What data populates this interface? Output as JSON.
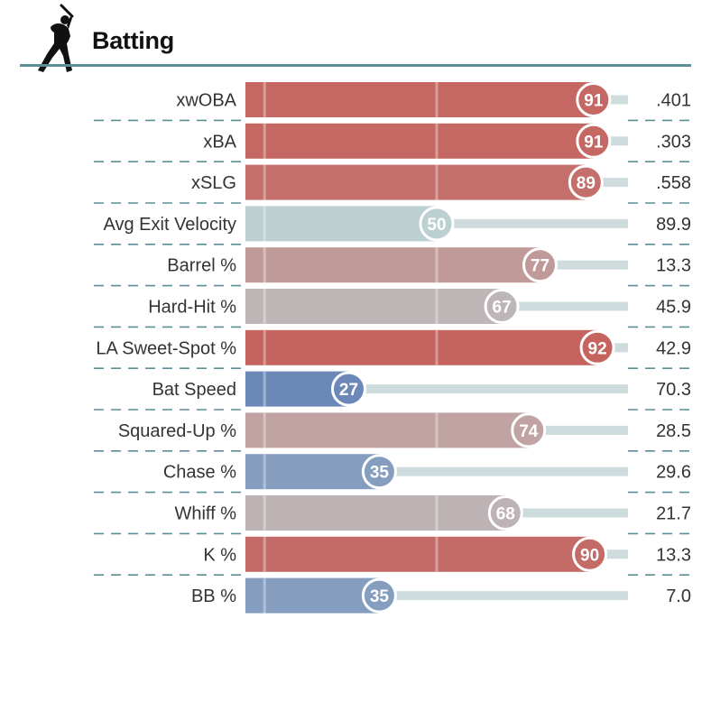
{
  "header": {
    "title": "Batting",
    "icon": "batter-silhouette-icon"
  },
  "colors": {
    "divider": "#5b8f96",
    "track": "#cfdcdd",
    "scale_points": [
      {
        "p": 0,
        "color": "#3d5eaa"
      },
      {
        "p": 50,
        "color": "#bccfd1"
      },
      {
        "p": 100,
        "color": "#c8403a"
      }
    ]
  },
  "chart_data": {
    "type": "bar",
    "orientation": "horizontal",
    "xlim": [
      0,
      100
    ],
    "reference_lines": [
      5,
      50
    ],
    "categories": [
      "xwOBA",
      "xBA",
      "xSLG",
      "Avg Exit Velocity",
      "Barrel %",
      "Hard-Hit %",
      "LA Sweet-Spot %",
      "Bat Speed",
      "Squared-Up %",
      "Chase %",
      "Whiff %",
      "K %",
      "BB %"
    ],
    "percentiles": [
      91,
      91,
      89,
      50,
      77,
      67,
      92,
      27,
      74,
      35,
      68,
      90,
      35
    ],
    "values": [
      ".401",
      ".303",
      ".558",
      "89.9",
      "13.3",
      "45.9",
      "42.9",
      "70.3",
      "28.5",
      "29.6",
      "21.7",
      "13.3",
      "7.0"
    ]
  }
}
